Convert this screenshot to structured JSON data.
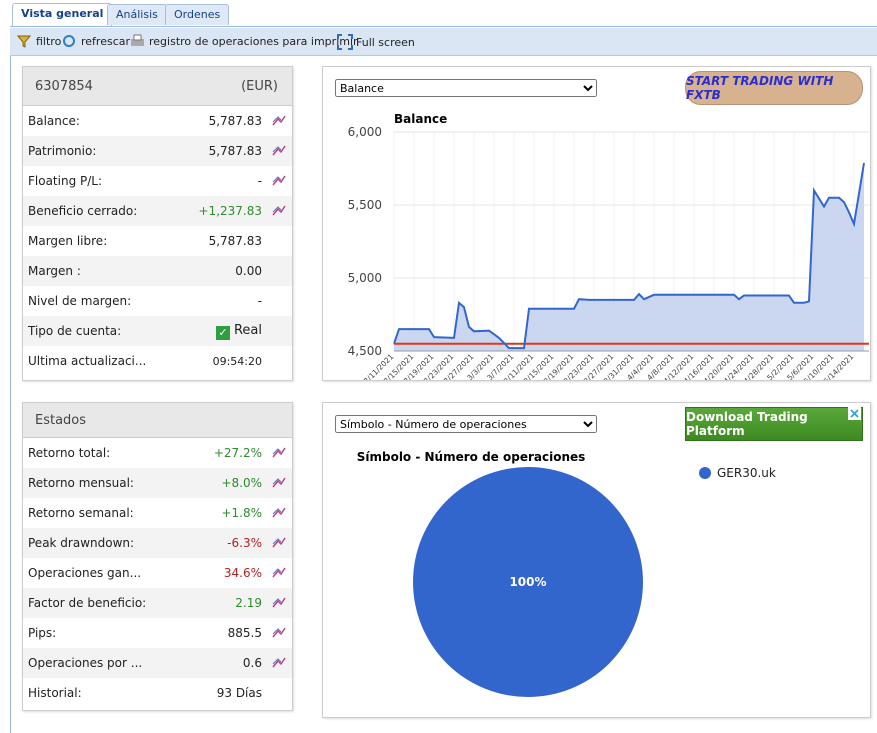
{
  "tabs": [
    "Vista general",
    "Análisis",
    "Ordenes"
  ],
  "toolbar": [
    "filtro",
    "refrescar",
    "registro de operaciones para imprimir",
    "Full screen"
  ],
  "account": {
    "id": "6307854",
    "currency": "(EUR)",
    "rows": [
      {
        "label": "Balance:",
        "value": "5,787.83",
        "tone": "neutral",
        "chart": true
      },
      {
        "label": "Patrimonio:",
        "value": "5,787.83",
        "tone": "neutral",
        "chart": true
      },
      {
        "label": "Floating P/L:",
        "value": "-",
        "tone": "neutral",
        "chart": true
      },
      {
        "label": "Beneficio cerrado:",
        "value": "+1,237.83",
        "tone": "positive",
        "chart": true
      },
      {
        "label": "Margen libre:",
        "value": "5,787.83",
        "tone": "neutral",
        "chart": false
      },
      {
        "label": "Margen :",
        "value": "0.00",
        "tone": "neutral",
        "chart": false
      },
      {
        "label": "Nivel de margen:",
        "value": "-",
        "tone": "neutral",
        "chart": false
      },
      {
        "label": "Tipo de cuenta:",
        "value": "Real",
        "tone": "neutral",
        "chart": false,
        "check": true
      },
      {
        "label": "Ultima actualizaci...",
        "value": "09:54:20",
        "tone": "small",
        "chart": false
      }
    ]
  },
  "stats": {
    "title": "Estados",
    "rows": [
      {
        "label": "Retorno total:",
        "value": "+27.2%",
        "tone": "positive",
        "chart": true
      },
      {
        "label": "Retorno mensual:",
        "value": "+8.0%",
        "tone": "positive",
        "chart": true
      },
      {
        "label": "Retorno semanal:",
        "value": "+1.8%",
        "tone": "positive",
        "chart": true
      },
      {
        "label": "Peak drawndown:",
        "value": "-6.3%",
        "tone": "negative",
        "chart": true
      },
      {
        "label": "Operaciones gan...",
        "value": "34.6%",
        "tone": "negative",
        "chart": true
      },
      {
        "label": "Factor de beneficio:",
        "value": "2.19",
        "tone": "positive",
        "chart": true
      },
      {
        "label": "Pips:",
        "value": "885.5",
        "tone": "neutral",
        "chart": true
      },
      {
        "label": "Operaciones por ...",
        "value": "0.6",
        "tone": "neutral",
        "chart": true
      },
      {
        "label": "Historial:",
        "value": "93 Días",
        "tone": "neutral",
        "chart": false
      }
    ]
  },
  "ads": [
    "START TRADING WITH FXTB",
    "Download Trading Platform"
  ],
  "chart_data": [
    {
      "type": "line",
      "selector": "Balance",
      "title": "Balance",
      "x": [
        "2/11/2021",
        "2/12/2021",
        "2/18/2021",
        "2/19/2021",
        "2/23/2021",
        "2/24/2021",
        "2/25/2021",
        "2/26/2021",
        "2/27/2021",
        "3/2/2021",
        "3/4/2021",
        "3/6/2021",
        "3/9/2021",
        "3/10/2021",
        "3/19/2021",
        "3/20/2021",
        "3/22/2021",
        "3/31/2021",
        "4/1/2021",
        "4/2/2021",
        "4/4/2021",
        "4/20/2021",
        "4/21/2021",
        "4/22/2021",
        "5/1/2021",
        "5/2/2021",
        "5/4/2021",
        "5/5/2021",
        "5/6/2021",
        "5/8/2021",
        "5/9/2021",
        "5/11/2021",
        "5/12/2021",
        "5/13/2021",
        "5/14/2021",
        "5/16/2021"
      ],
      "values": [
        4550,
        4650,
        4650,
        4595,
        4590,
        4830,
        4800,
        4665,
        4635,
        4640,
        4590,
        4520,
        4520,
        4790,
        4790,
        4855,
        4850,
        4850,
        4890,
        4855,
        4885,
        4885,
        4855,
        4880,
        4880,
        4830,
        4830,
        4840,
        5600,
        5490,
        5550,
        5550,
        5520,
        5450,
        5370,
        5787.83
      ],
      "color": "#3366cc",
      "fill": "#c5d3ef",
      "reference_value": 4550,
      "reference_color": "#dc3912",
      "xlim": [
        "2/11/2021",
        "5/17/2021"
      ],
      "xticks": [
        "2/11/2021",
        "2/15/2021",
        "2/19/2021",
        "2/23/2021",
        "2/27/2021",
        "3/3/2021",
        "3/7/2021",
        "3/11/2021",
        "3/15/2021",
        "3/19/2021",
        "3/23/2021",
        "3/27/2021",
        "3/31/2021",
        "4/4/2021",
        "4/8/2021",
        "4/12/2021",
        "4/16/2021",
        "4/20/2021",
        "4/24/2021",
        "4/28/2021",
        "5/2/2021",
        "5/6/2021",
        "5/10/2021",
        "5/14/2021"
      ],
      "ylim": [
        4500,
        6000
      ],
      "yticks": [
        {
          "value": 4500,
          "label": "4,500"
        },
        {
          "value": 5000,
          "label": "5,000"
        },
        {
          "value": 5500,
          "label": "5,500"
        },
        {
          "value": 6000,
          "label": "6,000"
        }
      ],
      "grid": true
    },
    {
      "type": "pie",
      "selector": "Símbolo - Número de operaciones",
      "title": "Símbolo - Número de operaciones",
      "categories": [
        "GER30.uk"
      ],
      "values": [
        100
      ],
      "value_labels": [
        "100%"
      ],
      "colors": [
        "#3366cc"
      ]
    }
  ]
}
